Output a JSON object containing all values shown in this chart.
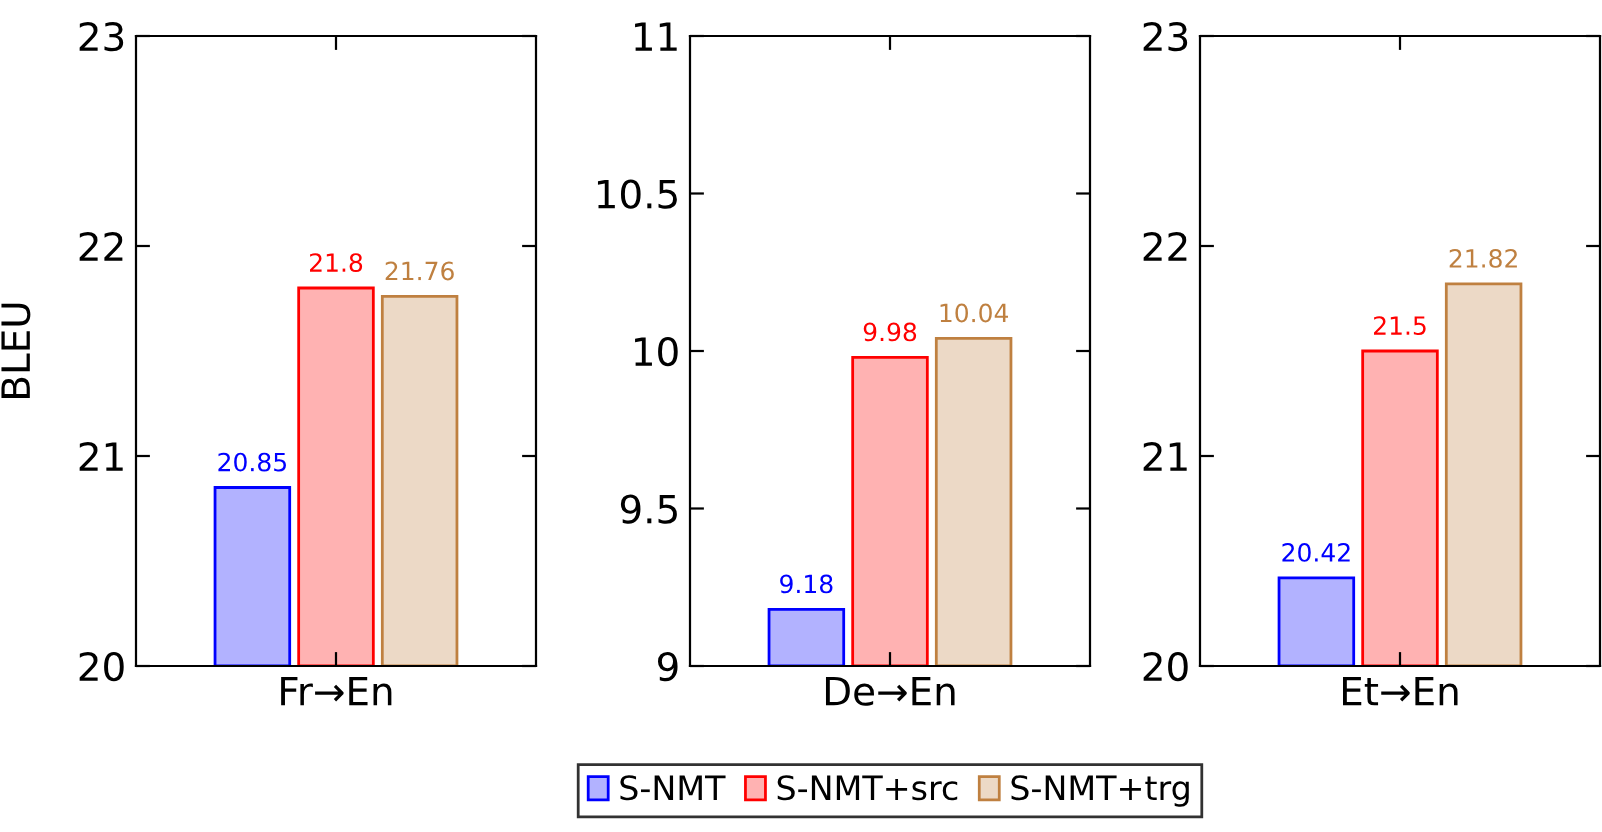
{
  "chart_data": [
    {
      "type": "bar",
      "categories": [
        "Fr→En"
      ],
      "ylabel": "BLEU",
      "ylim": [
        20,
        23
      ],
      "yticks": [
        20,
        21,
        22,
        23
      ],
      "data_labels": true,
      "grid": false,
      "series": [
        {
          "color": "#0000ff",
          "values": [
            20.85
          ]
        },
        {
          "color": "#ff0000",
          "values": [
            21.8
          ]
        },
        {
          "color": "#bf8040",
          "values": [
            21.76
          ]
        }
      ]
    },
    {
      "type": "bar",
      "categories": [
        "De→En"
      ],
      "ylim": [
        9,
        11
      ],
      "yticks": [
        9,
        9.5,
        10,
        10.5,
        11
      ],
      "data_labels": true,
      "grid": false,
      "legend": "bottom",
      "series": [
        {
          "name": "S-NMT",
          "color": "#0000ff",
          "values": [
            9.18
          ]
        },
        {
          "name": "S-NMT+src",
          "color": "#ff0000",
          "values": [
            9.98
          ]
        },
        {
          "name": "S-NMT+trg",
          "color": "#bf8040",
          "values": [
            10.04
          ]
        }
      ]
    },
    {
      "type": "bar",
      "categories": [
        "Et→En"
      ],
      "ylim": [
        20,
        23
      ],
      "yticks": [
        20,
        21,
        22,
        23
      ],
      "data_labels": true,
      "grid": false,
      "series": [
        {
          "color": "#0000ff",
          "values": [
            20.42
          ]
        },
        {
          "color": "#ff0000",
          "values": [
            21.5
          ]
        },
        {
          "color": "#bf8040",
          "values": [
            21.82
          ]
        }
      ]
    }
  ]
}
